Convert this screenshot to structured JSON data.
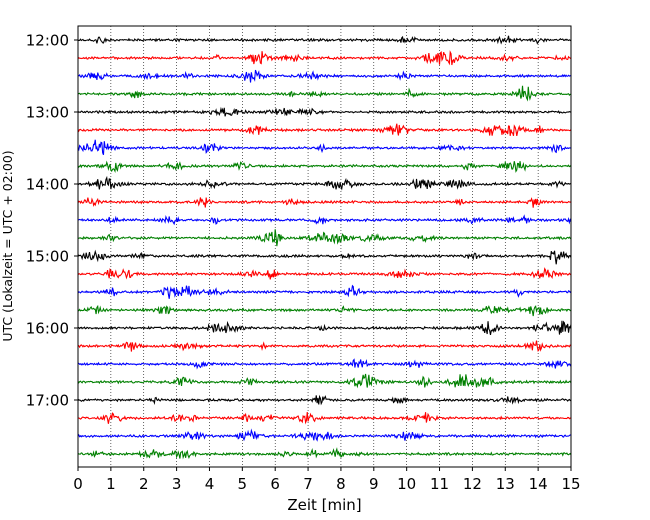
{
  "chart_data": {
    "type": "line",
    "title": "",
    "xlabel": "Zeit  [min]",
    "ylabel": "UTC (Lokalzeit = UTC + 02:00)",
    "xlim": [
      0,
      15
    ],
    "x_ticks": [
      0,
      1,
      2,
      3,
      4,
      5,
      6,
      7,
      8,
      9,
      10,
      11,
      12,
      13,
      14,
      15
    ],
    "y_ticks": [
      "12:00",
      "13:00",
      "14:00",
      "15:00",
      "16:00",
      "17:00"
    ],
    "grid": "vertical dotted",
    "trace_interval_min": 15,
    "trace_start_times": [
      "12:00",
      "12:15",
      "12:30",
      "12:45",
      "13:00",
      "13:15",
      "13:30",
      "13:45",
      "14:00",
      "14:15",
      "14:30",
      "14:45",
      "15:00",
      "15:15",
      "15:30",
      "15:45",
      "16:00",
      "16:15",
      "16:30",
      "16:45",
      "17:00",
      "17:15",
      "17:30",
      "17:45"
    ],
    "trace_colors": [
      "#000000",
      "#ff0000",
      "#0000ff",
      "#008000"
    ]
  }
}
